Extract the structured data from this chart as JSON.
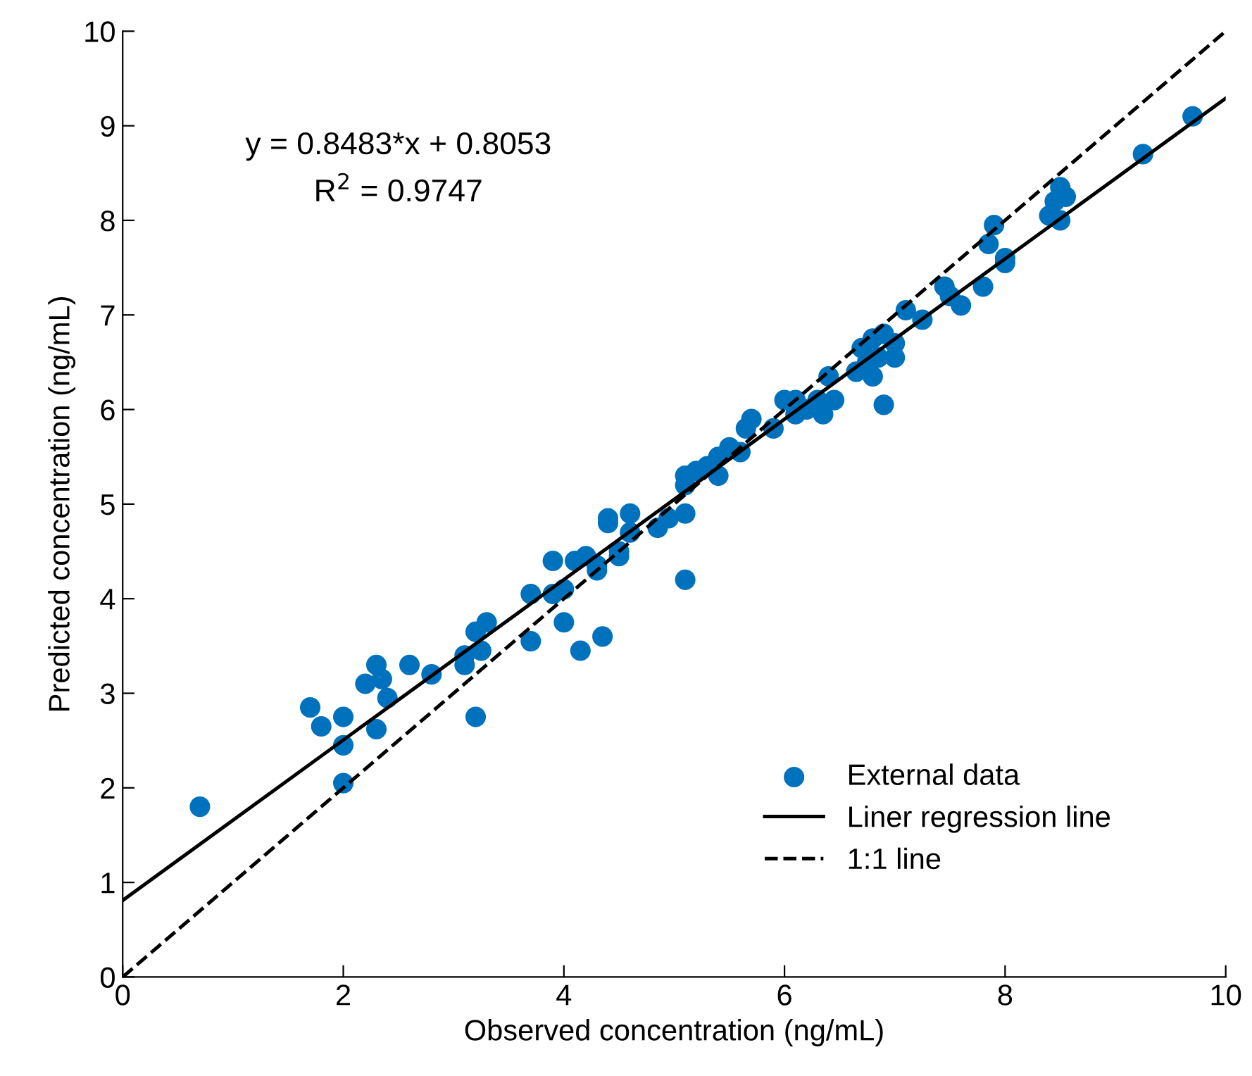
{
  "chart_data": {
    "type": "scatter",
    "xlabel": "Observed concentration (ng/mL)",
    "ylabel": "Predicted concentration (ng/mL)",
    "xlim": [
      0,
      10
    ],
    "ylim": [
      0,
      10
    ],
    "xticks": [
      0,
      2,
      4,
      6,
      8,
      10
    ],
    "yticks": [
      0,
      1,
      2,
      3,
      4,
      5,
      6,
      7,
      8,
      9,
      10
    ],
    "grid": false,
    "legend": "bottom right",
    "annotations": [
      "y = 0.8483*x + 0.8053",
      "R$^{2}$ = 0.9747"
    ],
    "series": [
      {
        "name": "External data",
        "marker": "circle",
        "color": "#0072bd",
        "x": [
          0.7,
          1.7,
          1.8,
          2.0,
          2.0,
          2.0,
          2.2,
          2.3,
          2.35,
          2.4,
          2.3,
          2.6,
          2.8,
          3.1,
          3.1,
          3.2,
          3.2,
          3.25,
          3.3,
          3.7,
          3.7,
          3.9,
          3.9,
          4.0,
          4.0,
          4.1,
          4.15,
          4.2,
          4.3,
          4.3,
          4.35,
          4.4,
          4.4,
          4.5,
          4.5,
          4.6,
          4.6,
          4.85,
          4.95,
          5.1,
          5.1,
          5.1,
          5.1,
          5.2,
          5.3,
          5.4,
          5.4,
          5.5,
          5.6,
          5.65,
          5.7,
          5.9,
          6.0,
          6.1,
          6.1,
          6.2,
          6.3,
          6.35,
          6.4,
          6.45,
          6.65,
          6.7,
          6.75,
          6.8,
          6.8,
          6.85,
          6.9,
          6.9,
          7.0,
          7.0,
          7.1,
          7.25,
          7.45,
          7.5,
          7.6,
          7.8,
          7.85,
          7.9,
          8.0,
          8.0,
          8.4,
          8.45,
          8.5,
          8.5,
          8.55,
          9.25,
          9.7
        ],
        "values": [
          1.8,
          2.85,
          2.65,
          2.75,
          2.45,
          2.05,
          3.1,
          3.3,
          3.15,
          2.95,
          2.62,
          3.3,
          3.2,
          3.4,
          3.3,
          3.65,
          2.75,
          3.45,
          3.75,
          4.05,
          3.55,
          4.4,
          4.05,
          4.1,
          3.75,
          4.4,
          3.45,
          4.45,
          4.35,
          4.3,
          3.6,
          4.8,
          4.85,
          4.45,
          4.5,
          4.9,
          4.7,
          4.75,
          4.85,
          4.9,
          5.3,
          5.2,
          4.2,
          5.35,
          5.4,
          5.5,
          5.3,
          5.6,
          5.55,
          5.8,
          5.9,
          5.8,
          6.1,
          6.1,
          5.95,
          6.0,
          6.1,
          5.95,
          6.35,
          6.1,
          6.4,
          6.65,
          6.5,
          6.75,
          6.35,
          6.55,
          6.8,
          6.05,
          6.55,
          6.7,
          7.05,
          6.95,
          7.3,
          7.2,
          7.1,
          7.3,
          7.75,
          7.95,
          7.55,
          7.6,
          8.05,
          8.2,
          8.35,
          8.0,
          8.25,
          8.7,
          9.1
        ]
      },
      {
        "name": "Liner regression line",
        "type": "line",
        "line_style": "solid",
        "color": "#000000",
        "x": [
          0,
          10
        ],
        "values": [
          0.81,
          9.29
        ]
      },
      {
        "name": "1:1 line",
        "type": "line",
        "line_style": "dashed",
        "color": "#000000",
        "x": [
          0,
          10
        ],
        "values": [
          0,
          10
        ]
      }
    ]
  }
}
